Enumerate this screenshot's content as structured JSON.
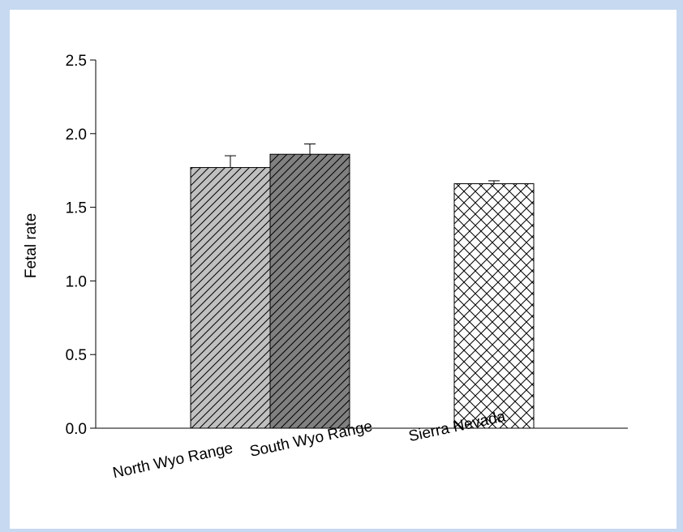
{
  "chart_data": {
    "type": "bar",
    "title": "",
    "xlabel": "",
    "ylabel": "Fetal rate",
    "ylim": [
      0,
      2.5
    ],
    "yticks": [
      "0.0",
      "0.5",
      "1.0",
      "1.5",
      "2.0",
      "2.5"
    ],
    "categories": [
      "North Wyo Range",
      "South Wyo Range",
      "Sierra Nevada"
    ],
    "values": [
      1.77,
      1.86,
      1.66
    ],
    "errors": [
      0.08,
      0.07,
      0.02
    ],
    "bar_styles": [
      {
        "fill": "#c0c0c0",
        "pattern": "diagonal-hatch"
      },
      {
        "fill": "#808080",
        "pattern": "diagonal-hatch"
      },
      {
        "fill": "#ffffff",
        "pattern": "cross-hatch"
      }
    ],
    "grid": false,
    "legend": "none"
  }
}
